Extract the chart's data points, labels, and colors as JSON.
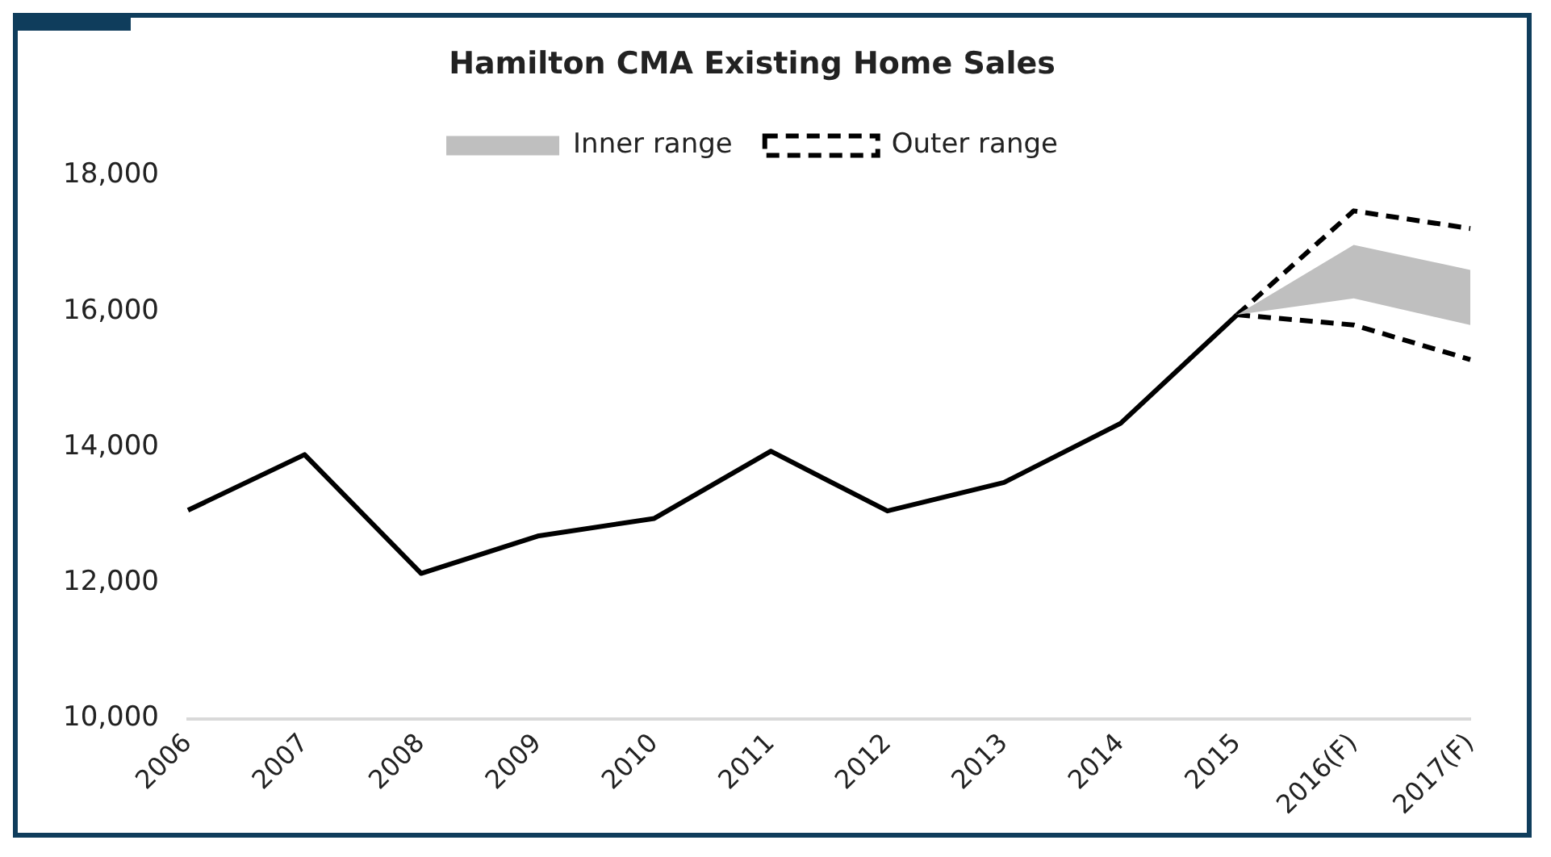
{
  "chart_data": {
    "type": "line",
    "title": "Hamilton CMA Existing Home Sales",
    "categories": [
      "2006",
      "2007",
      "2008",
      "2009",
      "2010",
      "2011",
      "2012",
      "2013",
      "2014",
      "2015",
      "2016(F)",
      "2017(F)"
    ],
    "series": [
      {
        "color": "#000000",
        "line_style": "solid",
        "values": [
          13070,
          13890,
          12140,
          12690,
          12950,
          13940,
          13060,
          13480,
          14350,
          15950,
          null,
          null
        ]
      },
      {
        "name": "Inner range",
        "type": "area",
        "color": "#bfbfbf",
        "values": [
          null,
          null,
          null,
          null,
          null,
          null,
          null,
          null,
          null,
          null,
          null,
          null
        ],
        "lower": [
          null,
          null,
          null,
          null,
          null,
          null,
          null,
          null,
          null,
          15950,
          16190,
          15800
        ],
        "upper": [
          null,
          null,
          null,
          null,
          null,
          null,
          null,
          null,
          null,
          15950,
          16980,
          16610
        ]
      },
      {
        "name": "Outer range",
        "color": "#000000",
        "line_style": "dashed",
        "values": [
          null,
          null,
          null,
          null,
          null,
          null,
          null,
          null,
          null,
          15950,
          17480,
          17220
        ]
      },
      {
        "color": "#000000",
        "line_style": "dashed",
        "values": [
          null,
          null,
          null,
          null,
          null,
          null,
          null,
          null,
          null,
          15950,
          15800,
          15290
        ]
      }
    ],
    "ylim": [
      10000,
      18000
    ],
    "yticks": [
      {
        "value": 10000,
        "label": "10,000"
      },
      {
        "value": 12000,
        "label": "12,000"
      },
      {
        "value": 14000,
        "label": "14,000"
      },
      {
        "value": 16000,
        "label": "16,000"
      },
      {
        "value": 18000,
        "label": "18,000"
      }
    ],
    "grid": false,
    "legend": "top",
    "marker": "none"
  }
}
